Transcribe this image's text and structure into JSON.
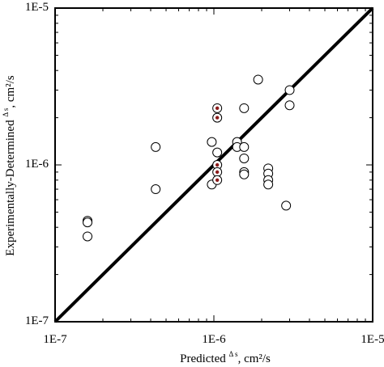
{
  "chart_data": {
    "type": "scatter",
    "xscale": "log",
    "yscale": "log",
    "xlim": [
      1e-07,
      1e-05
    ],
    "ylim": [
      1e-07,
      1e-05
    ],
    "x_ticks": [
      "1E-7",
      "1E-6",
      "1E-5"
    ],
    "y_ticks": [
      "1E-7",
      "1E-6",
      "1E-5"
    ],
    "xlabel": {
      "pre": "Predicted ",
      "sym": "Δ s",
      "post": ", cm²/s"
    },
    "ylabel": {
      "pre": "Experimentally-Determined ",
      "sym": "Δ s",
      "post": ", cm²/s"
    },
    "grid": false,
    "legend": "none",
    "reference_line": {
      "from": [
        1e-07,
        1e-07
      ],
      "to": [
        1e-05,
        1e-05
      ],
      "color": "#000000"
    },
    "marker_stroke": "#000000",
    "highlight_color": "#8b1a1a",
    "points": [
      {
        "x": 1.6e-07,
        "y": 4.4e-07,
        "highlight": false
      },
      {
        "x": 1.6e-07,
        "y": 4.3e-07,
        "highlight": false
      },
      {
        "x": 1.6e-07,
        "y": 3.5e-07,
        "highlight": false
      },
      {
        "x": 4.3e-07,
        "y": 1.3e-06,
        "highlight": false
      },
      {
        "x": 4.3e-07,
        "y": 7e-07,
        "highlight": false
      },
      {
        "x": 9.7e-07,
        "y": 1.4e-06,
        "highlight": false
      },
      {
        "x": 9.7e-07,
        "y": 7.5e-07,
        "highlight": false
      },
      {
        "x": 1.05e-06,
        "y": 2.3e-06,
        "highlight": true
      },
      {
        "x": 1.05e-06,
        "y": 2e-06,
        "highlight": true
      },
      {
        "x": 1.05e-06,
        "y": 1.2e-06,
        "highlight": false
      },
      {
        "x": 1.05e-06,
        "y": 1e-06,
        "highlight": true
      },
      {
        "x": 1.05e-06,
        "y": 9e-07,
        "highlight": true
      },
      {
        "x": 1.05e-06,
        "y": 8e-07,
        "highlight": true
      },
      {
        "x": 1.4e-06,
        "y": 1.4e-06,
        "highlight": false
      },
      {
        "x": 1.4e-06,
        "y": 1.3e-06,
        "highlight": false
      },
      {
        "x": 1.55e-06,
        "y": 2.3e-06,
        "highlight": false
      },
      {
        "x": 1.55e-06,
        "y": 1.3e-06,
        "highlight": false
      },
      {
        "x": 1.55e-06,
        "y": 1.1e-06,
        "highlight": false
      },
      {
        "x": 1.55e-06,
        "y": 9e-07,
        "highlight": false
      },
      {
        "x": 1.55e-06,
        "y": 8.7e-07,
        "highlight": false
      },
      {
        "x": 1.9e-06,
        "y": 3.5e-06,
        "highlight": false
      },
      {
        "x": 2.2e-06,
        "y": 9.5e-07,
        "highlight": false
      },
      {
        "x": 2.2e-06,
        "y": 8.8e-07,
        "highlight": false
      },
      {
        "x": 2.2e-06,
        "y": 8e-07,
        "highlight": false
      },
      {
        "x": 2.2e-06,
        "y": 7.5e-07,
        "highlight": false
      },
      {
        "x": 2.85e-06,
        "y": 5.5e-07,
        "highlight": false
      },
      {
        "x": 3e-06,
        "y": 3e-06,
        "highlight": false
      },
      {
        "x": 3e-06,
        "y": 2.4e-06,
        "highlight": false
      }
    ]
  }
}
